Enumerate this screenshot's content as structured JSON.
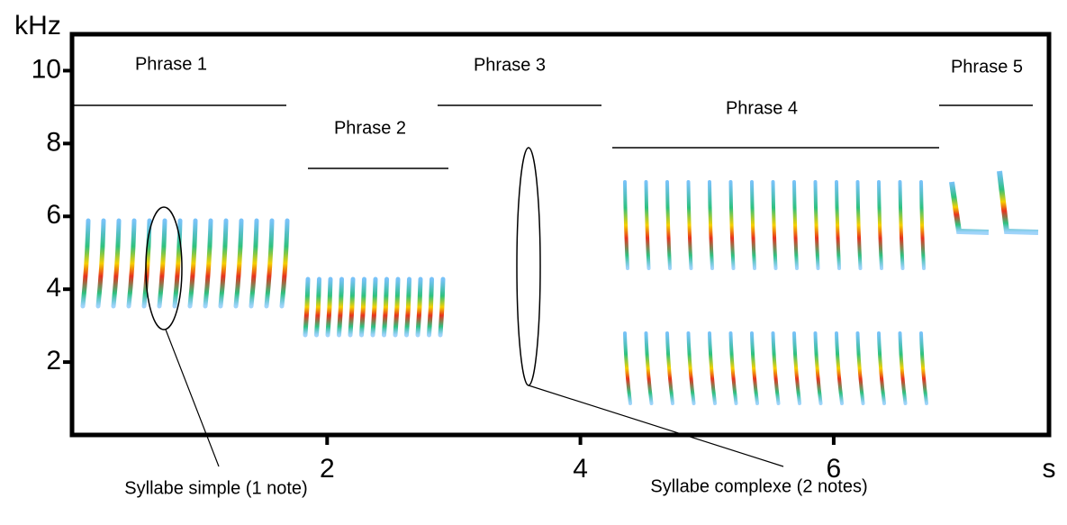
{
  "chart_data": {
    "type": "spectrogram",
    "x_label": "s",
    "y_label": "kHz",
    "xlim": [
      0,
      7.7
    ],
    "xticks": [
      2,
      4,
      6
    ],
    "ylim": [
      0,
      11
    ],
    "yticks": [
      2,
      4,
      6,
      8,
      10
    ],
    "phrases": [
      "Phrase 1",
      "Phrase 2",
      "Phrase 3",
      "Phrase 4",
      "Phrase 5"
    ],
    "annotations": [
      "Syllabe simple (1 note)",
      "Syllabe complexe (2 notes)"
    ]
  }
}
